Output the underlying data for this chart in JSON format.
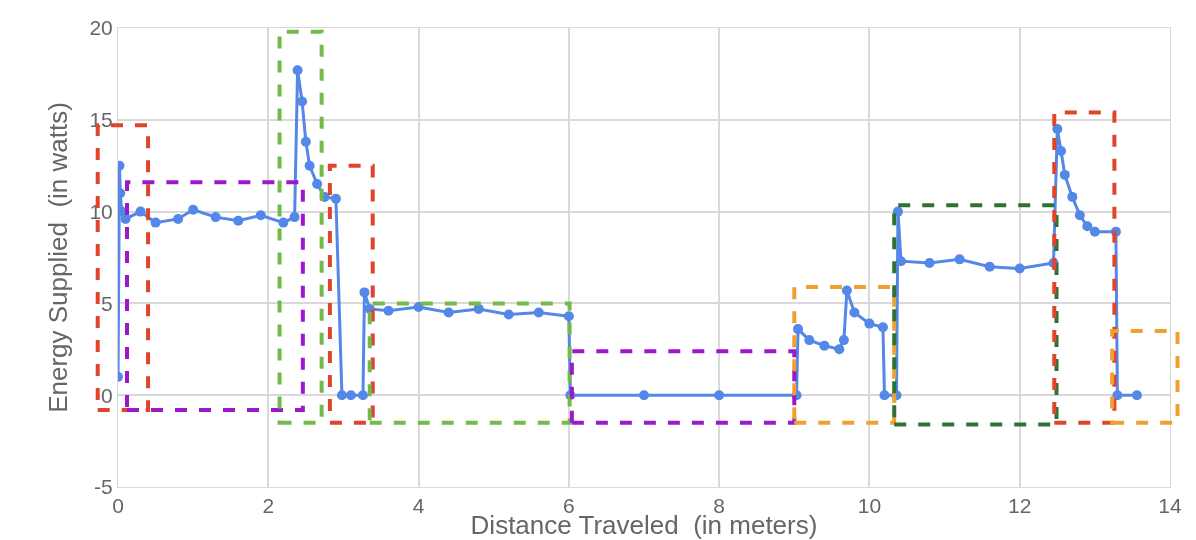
{
  "chart_data": {
    "type": "line",
    "xlabel": "Distance Traveled  (in meters)",
    "ylabel": "Energy Supplied  (in watts)",
    "xlim": [
      0,
      14
    ],
    "xticks": [
      0,
      2,
      4,
      6,
      8,
      10,
      12,
      14
    ],
    "ylim": [
      -5,
      20
    ],
    "yticks": [
      -5,
      0,
      5,
      10,
      15,
      20
    ],
    "grid": true,
    "marker": "circle",
    "line_style": "solid",
    "series": [
      {
        "color": "#5387e8",
        "x": [
          0,
          0.02,
          0.03,
          0.05,
          0.1,
          0.3,
          0.5,
          0.8,
          1.0,
          1.3,
          1.6,
          1.9,
          2.2,
          2.35,
          2.39,
          2.45,
          2.5,
          2.55,
          2.65,
          2.75,
          2.9,
          2.98,
          3.1,
          3.26,
          3.28,
          3.35,
          3.6,
          4.0,
          4.4,
          4.8,
          5.2,
          5.6,
          6.0,
          6.02,
          7.0,
          8.0,
          9.03,
          9.05,
          9.2,
          9.4,
          9.6,
          9.66,
          9.7,
          9.8,
          10.0,
          10.18,
          10.2,
          10.36,
          10.38,
          10.42,
          10.8,
          11.2,
          11.6,
          12.0,
          12.45,
          12.5,
          12.55,
          12.6,
          12.7,
          12.8,
          12.9,
          13.0,
          13.28,
          13.3,
          13.56
        ],
        "values": [
          1,
          12.5,
          11,
          10,
          9.6,
          10,
          9.4,
          9.6,
          10.1,
          9.7,
          9.5,
          9.8,
          9.4,
          9.7,
          17.7,
          16,
          13.8,
          12.5,
          11.5,
          10.8,
          10.7,
          0,
          0,
          0,
          5.6,
          4.7,
          4.6,
          4.8,
          4.5,
          4.7,
          4.4,
          4.5,
          4.3,
          0,
          0,
          0,
          0,
          3.6,
          3.0,
          2.7,
          2.5,
          3.0,
          5.7,
          4.5,
          3.9,
          3.7,
          0,
          0,
          10,
          7.3,
          7.2,
          7.4,
          7.0,
          6.9,
          7.2,
          14.5,
          13.3,
          12,
          10.8,
          9.8,
          9.2,
          8.9,
          8.9,
          0,
          0
        ]
      }
    ]
  }
}
